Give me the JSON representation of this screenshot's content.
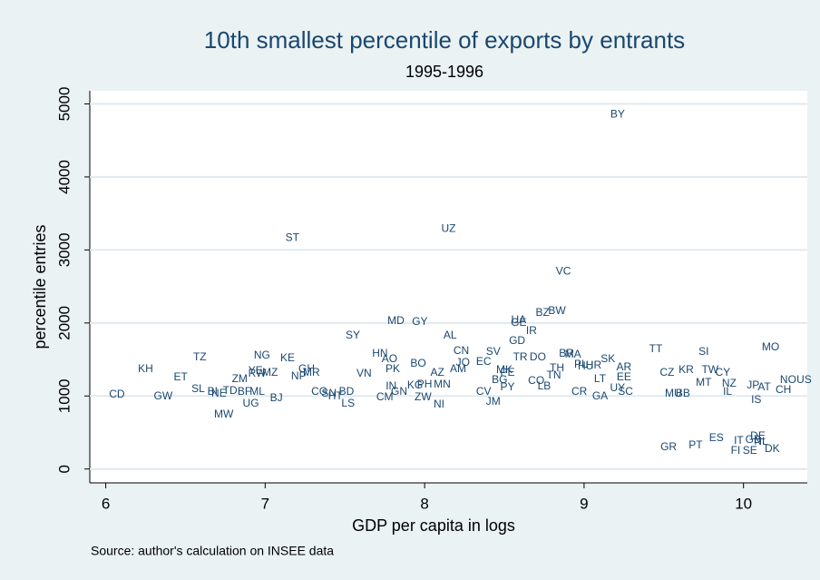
{
  "chart_data": {
    "type": "scatter",
    "title": "10th smallest percentile of exports by entrants",
    "subtitle": "1995-1996",
    "x_label": "GDP per capita in logs",
    "y_label": "percentile entries",
    "source": "Source: author's calculation on INSEE data",
    "color": "#1a476f",
    "grid": true,
    "xlim": [
      5.9,
      10.4
    ],
    "ylim": [
      -190,
      5180
    ],
    "xticks": [
      6,
      7,
      8,
      9,
      10
    ],
    "yticks": [
      0,
      1000,
      2000,
      3000,
      4000,
      5000
    ],
    "labels": [
      "BY",
      "ST",
      "UZ",
      "VC",
      "BZ",
      "BW",
      "MD",
      "GY",
      "UA",
      "GE",
      "IR",
      "SY",
      "AL",
      "GD",
      "MO",
      "TT",
      "SI",
      "CN",
      "SV",
      "HN",
      "BR",
      "MA",
      "TZ",
      "NG",
      "KE",
      "TR",
      "DO",
      "SK",
      "AO",
      "BO",
      "EC",
      "JO",
      "PK",
      "KH",
      "ET",
      "AZ",
      "AM",
      "VN",
      "GH",
      "MR",
      "NP",
      "ZM",
      "KG",
      "PH",
      "MN",
      "MK",
      "CO",
      "TH",
      "TN",
      "PE",
      "BG",
      "LB",
      "PY",
      "CV",
      "JM",
      "NI",
      "ZW",
      "CM",
      "GN",
      "IN",
      "CG",
      "SN",
      "HT",
      "BD",
      "LS",
      "BJ",
      "UG",
      "ML",
      "BF",
      "TD",
      "NE",
      "MW",
      "BI",
      "SL",
      "GW",
      "CD",
      "RW",
      "MZ",
      "YE",
      "CR",
      "GA",
      "UY",
      "SC",
      "LT",
      "EE",
      "HR",
      "HU",
      "PL",
      "AR",
      "CZ",
      "KR",
      "TW",
      "CY",
      "MT",
      "NZ",
      "IL",
      "MU",
      "BB",
      "JP",
      "AT",
      "IS",
      "CH",
      "NO",
      "US",
      "GR",
      "PT",
      "ES",
      "IT",
      "FI",
      "SE",
      "DE",
      "GB",
      "NL",
      "DK"
    ],
    "x": [
      9.21,
      7.17,
      8.15,
      8.87,
      8.74,
      8.83,
      7.82,
      7.97,
      8.59,
      8.59,
      8.67,
      7.55,
      8.16,
      8.58,
      10.17,
      9.45,
      9.75,
      8.23,
      8.43,
      7.72,
      8.89,
      8.93,
      6.59,
      6.98,
      7.14,
      8.6,
      8.71,
      9.15,
      7.78,
      7.96,
      8.37,
      8.24,
      7.8,
      6.25,
      6.47,
      8.08,
      8.21,
      7.62,
      7.26,
      7.29,
      7.21,
      6.84,
      7.94,
      8.0,
      8.11,
      8.5,
      8.7,
      8.83,
      8.81,
      8.52,
      8.47,
      8.75,
      8.52,
      8.37,
      8.43,
      8.09,
      7.99,
      7.75,
      7.84,
      7.79,
      7.34,
      7.4,
      7.44,
      7.51,
      7.52,
      7.07,
      6.91,
      6.95,
      6.87,
      6.78,
      6.71,
      6.74,
      6.67,
      6.58,
      6.36,
      6.07,
      6.95,
      7.03,
      6.94,
      8.97,
      9.1,
      9.21,
      9.26,
      9.1,
      9.25,
      9.06,
      9.01,
      8.98,
      9.25,
      9.52,
      9.64,
      9.79,
      9.87,
      9.75,
      9.91,
      9.9,
      9.56,
      9.62,
      10.06,
      10.13,
      10.08,
      10.25,
      10.28,
      10.38,
      9.53,
      9.7,
      9.83,
      9.97,
      9.95,
      10.04,
      10.09,
      10.06,
      10.11,
      10.18
    ],
    "y": [
      4852,
      3164,
      3289,
      2705,
      2134,
      2159,
      2023,
      2010,
      2035,
      1998,
      1886,
      1824,
      1824,
      1750,
      1663,
      1638,
      1601,
      1613,
      1601,
      1576,
      1576,
      1564,
      1526,
      1551,
      1514,
      1526,
      1526,
      1502,
      1502,
      1440,
      1464,
      1452,
      1365,
      1365,
      1253,
      1315,
      1365,
      1303,
      1365,
      1315,
      1266,
      1229,
      1142,
      1154,
      1154,
      1353,
      1204,
      1378,
      1278,
      1315,
      1216,
      1129,
      1117,
      1055,
      918,
      881,
      980,
      980,
      1055,
      1129,
      1055,
      1030,
      993,
      1055,
      894,
      968,
      894,
      1055,
      1055,
      1067,
      1030,
      745,
      1055,
      1092,
      993,
      1018,
      1303,
      1315,
      1340,
      1055,
      993,
      1104,
      1055,
      1229,
      1253,
      1415,
      1402,
      1427,
      1390,
      1315,
      1353,
      1353,
      1315,
      1179,
      1167,
      1055,
      1030,
      1030,
      1142,
      1117,
      943,
      1080,
      1216,
      1216,
      298,
      323,
      422,
      385,
      248,
      248,
      447,
      397,
      372,
      273
    ]
  }
}
